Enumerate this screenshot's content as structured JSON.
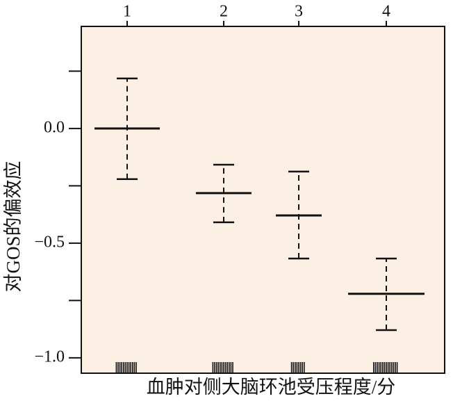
{
  "chart_data": {
    "type": "errorbar",
    "x_label": "血肿对侧大脑环池受压程度/分",
    "y_label": "对GOS的偏效应",
    "categories": [
      "1",
      "2",
      "3",
      "4"
    ],
    "values": [
      0.0,
      -0.282,
      -0.379,
      -0.721
    ],
    "lower": [
      -0.221,
      -0.409,
      -0.567,
      -0.879
    ],
    "upper": [
      0.218,
      -0.158,
      -0.188,
      -0.567
    ],
    "color": "#111111",
    "background": "#fcefe4",
    "ylim": [
      -1.067,
      0.445
    ],
    "yticks": [
      {
        "value": 0,
        "label": "0.0"
      },
      {
        "value": -0.5,
        "label": "−0.5"
      },
      {
        "value": -1,
        "label": "−1.0"
      }
    ],
    "minor_yticks": [
      0.25,
      -0.25,
      -0.75
    ]
  }
}
